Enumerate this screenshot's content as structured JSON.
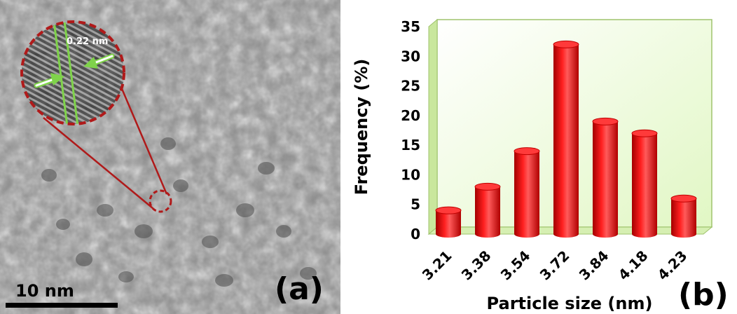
{
  "panel_a": {
    "panel_label": "(a)",
    "scale_bar_label": "10 nm",
    "lattice_spacing_label": "0.22 nm",
    "colors": {
      "highlight": "#b01a1a",
      "fringe_marker": "#7fd34a"
    }
  },
  "panel_b": {
    "panel_label": "(b)",
    "chart_data": {
      "type": "bar",
      "categories": [
        "3.21",
        "3.38",
        "3.54",
        "3.72",
        "3.84",
        "4.18",
        "4.23"
      ],
      "values": [
        4,
        8,
        14,
        32,
        19,
        17,
        6
      ],
      "title": "",
      "xlabel": "Particle size (nm)",
      "ylabel": "Frequency (%)",
      "ylim": [
        0,
        35
      ],
      "yticks": [
        0,
        5,
        10,
        15,
        20,
        25,
        30,
        35
      ],
      "grid": false,
      "legend": "none",
      "style": "3d-cylinder",
      "colors": {
        "bar": "#e60000",
        "wall": "#eafbd0",
        "floor": "#d6efb2"
      }
    }
  }
}
